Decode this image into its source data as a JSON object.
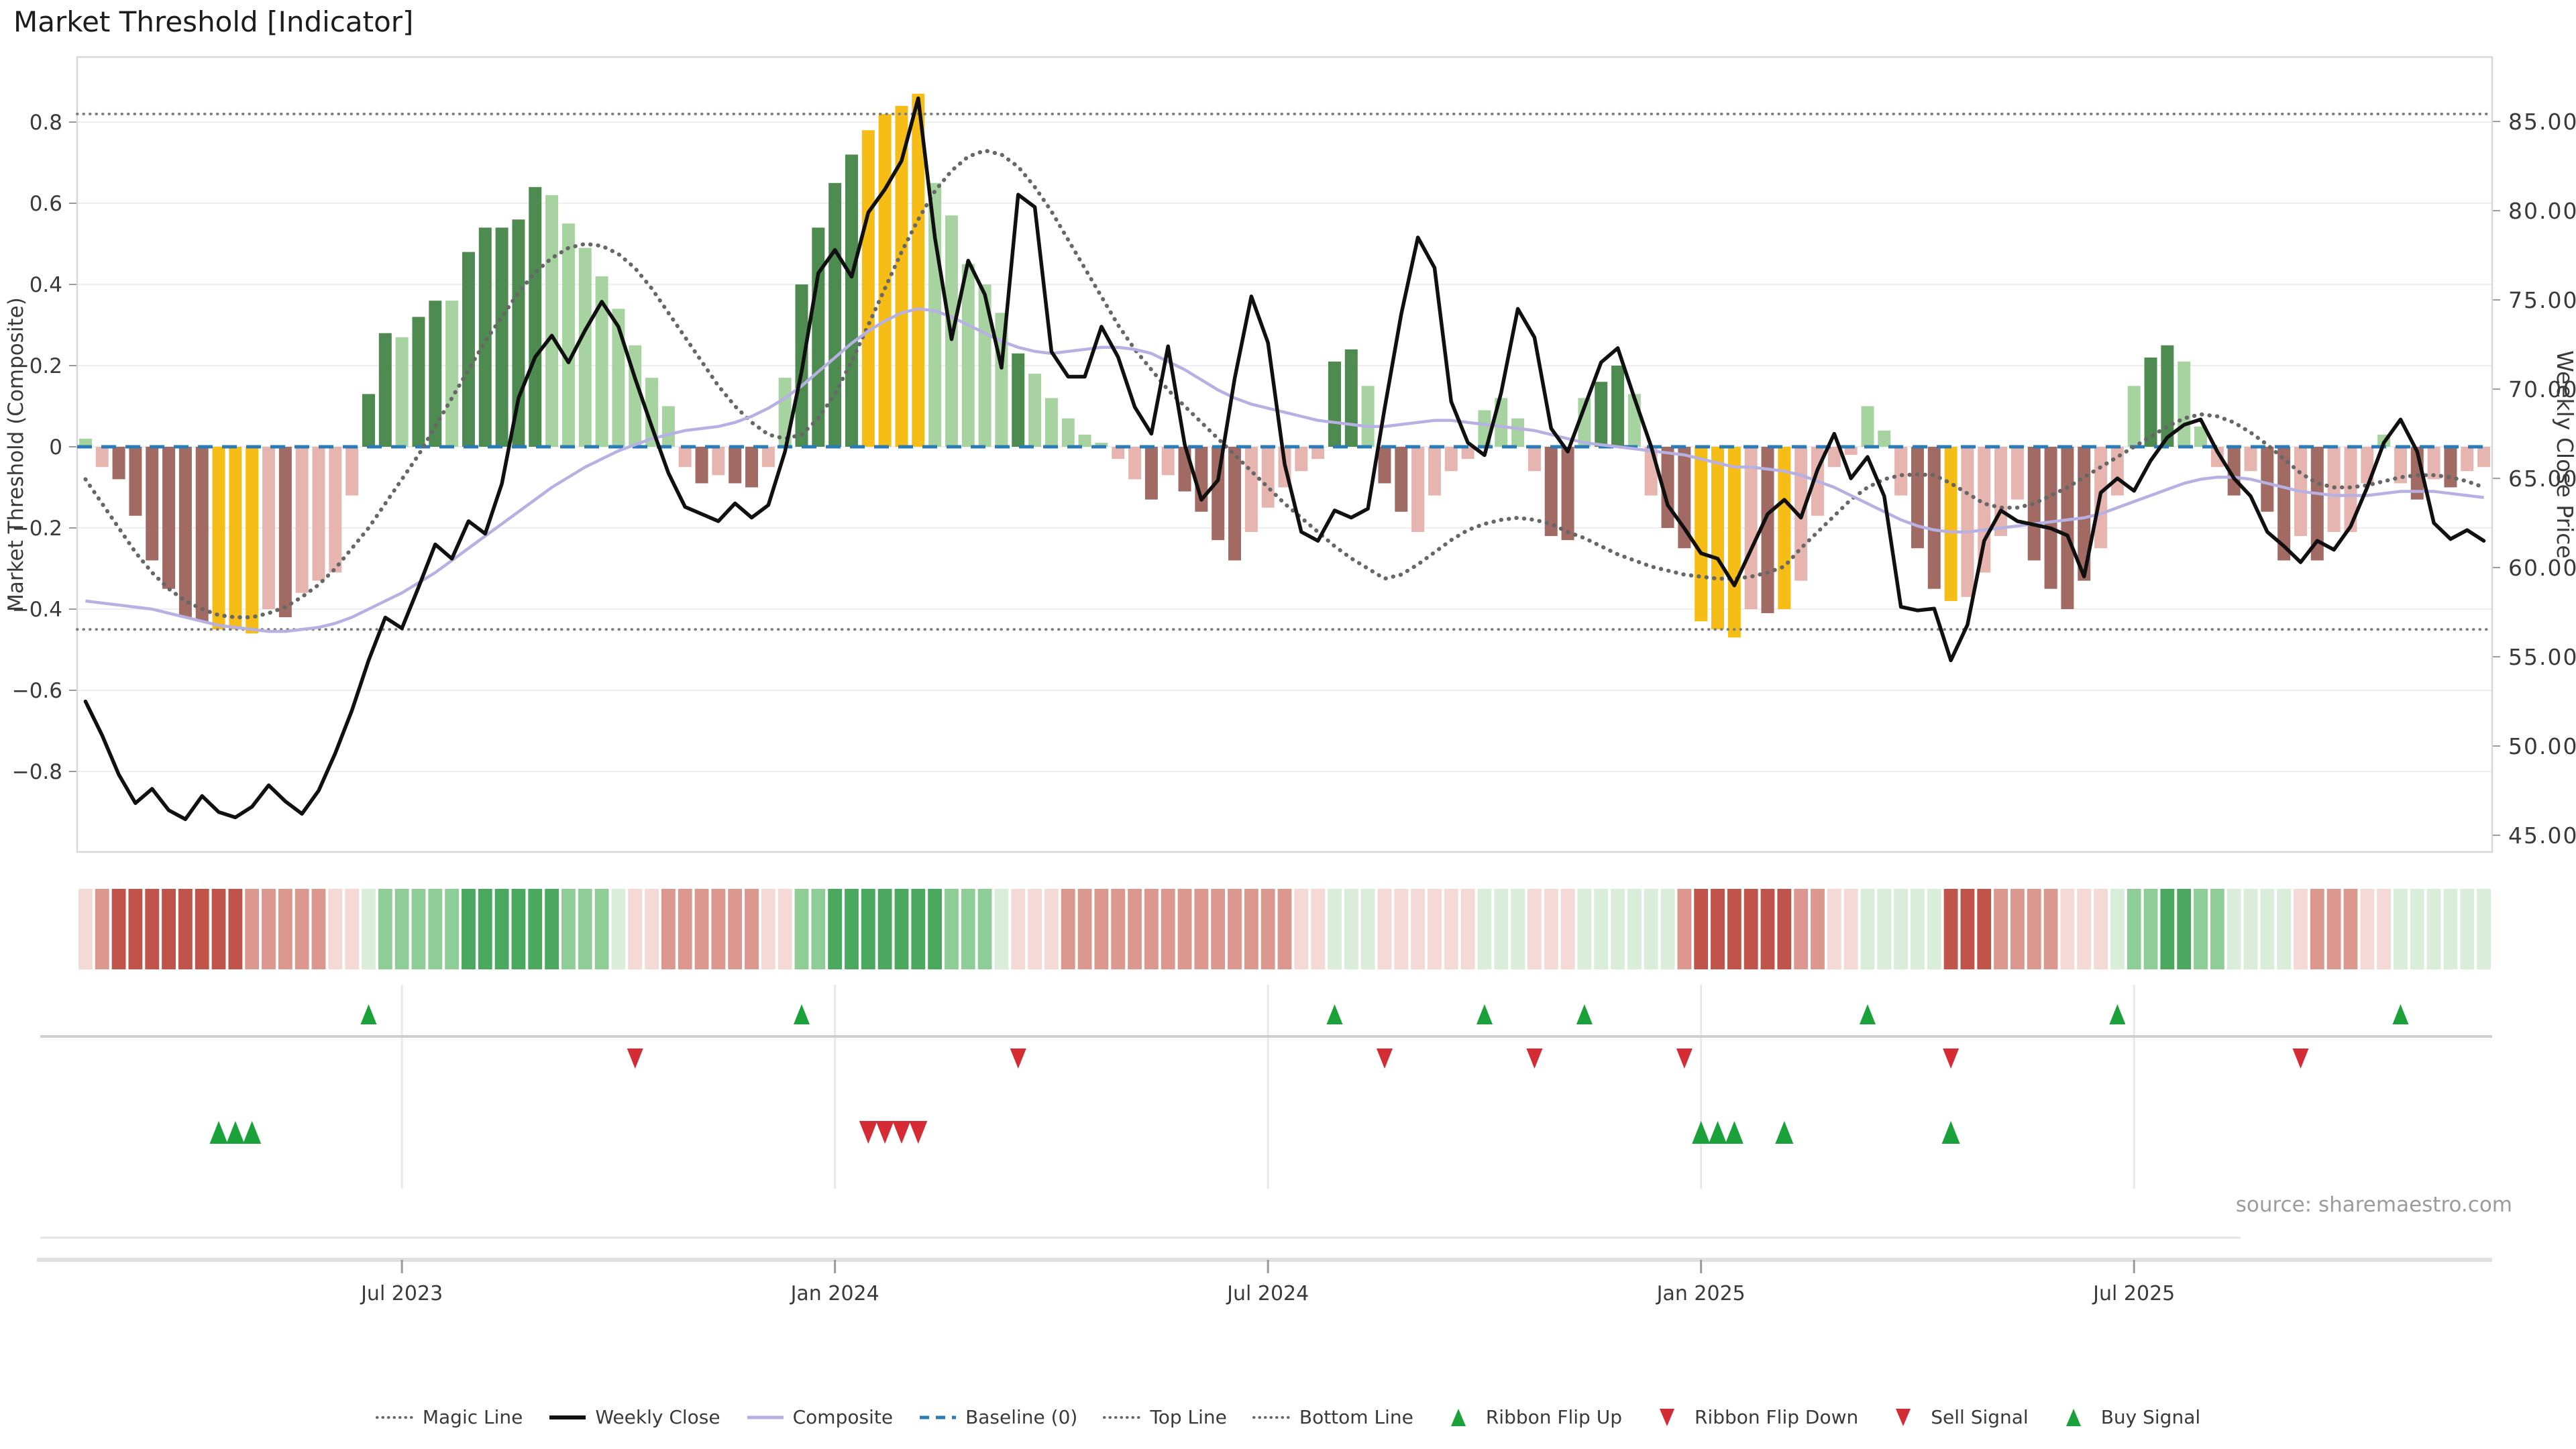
{
  "title": "Market Threshold [Indicator]",
  "source_note": "source: sharemaestro.com",
  "axes": {
    "left_title": "Market Threshold (Composite)",
    "right_title": "Weekly Close Price",
    "left_ticks": [
      {
        "v": 0.8,
        "label": "0.8"
      },
      {
        "v": 0.6,
        "label": "0.6"
      },
      {
        "v": 0.4,
        "label": "0.4"
      },
      {
        "v": 0.2,
        "label": "0.2"
      },
      {
        "v": 0.0,
        "label": "0"
      },
      {
        "v": -0.2,
        "label": "−0.2"
      },
      {
        "v": -0.4,
        "label": "−0.4"
      },
      {
        "v": -0.6,
        "label": "−0.6"
      },
      {
        "v": -0.8,
        "label": "−0.8"
      }
    ],
    "right_ticks": [
      {
        "v": 85,
        "label": "85.00"
      },
      {
        "v": 80,
        "label": "80.00"
      },
      {
        "v": 75,
        "label": "75.00"
      },
      {
        "v": 70,
        "label": "70.00"
      },
      {
        "v": 65,
        "label": "65.00"
      },
      {
        "v": 60,
        "label": "60.00"
      },
      {
        "v": 55,
        "label": "55.00"
      },
      {
        "v": 50,
        "label": "50.00"
      },
      {
        "v": 45,
        "label": "45.00"
      }
    ],
    "x_ticks": [
      {
        "week": 19.5,
        "label": "Jul 2023"
      },
      {
        "week": 45.5,
        "label": "Jan 2024"
      },
      {
        "week": 71.5,
        "label": "Jul 2024"
      },
      {
        "week": 97.5,
        "label": "Jan 2025"
      },
      {
        "week": 123.5,
        "label": "Jul 2025"
      }
    ]
  },
  "legend": [
    {
      "label": "Magic Line",
      "marker": "dotted-gray"
    },
    {
      "label": "Weekly Close",
      "marker": "solid-black"
    },
    {
      "label": "Composite",
      "marker": "solid-lavender"
    },
    {
      "label": "Baseline (0)",
      "marker": "dashed-blue"
    },
    {
      "label": "Top Line",
      "marker": "dotted-gray"
    },
    {
      "label": "Bottom Line",
      "marker": "dotted-gray"
    },
    {
      "label": "Ribbon Flip Up",
      "marker": "tri-up-green"
    },
    {
      "label": "Ribbon Flip Down",
      "marker": "tri-down-red"
    },
    {
      "label": "Sell Signal",
      "marker": "tri-down-red"
    },
    {
      "label": "Buy Signal",
      "marker": "tri-up-green"
    }
  ],
  "colors": {
    "bar": {
      "dg": "#4e8b50",
      "lg": "#a7d3a0",
      "y": "#f6bd16",
      "lp": "#e7b5b0",
      "dp": "#a16b64"
    },
    "ribbon": {
      "g1": "#d9edda",
      "g2": "#8fcd96",
      "g3": "#4aa95e",
      "r1": "#f4d9d6",
      "r2": "#dc988f",
      "r3": "#c0544b"
    },
    "close_line": "#101010",
    "composite_line": "#b7b0e2",
    "magic_line": "#676767",
    "baseline": "#2b7cb6",
    "ref_line": "#7f7f7f",
    "grid": "#ededf2",
    "spine": "#d7d7dc",
    "signal_up": "#1ba13a",
    "signal_down": "#d52b35",
    "tick_text": "#3a3a3a"
  },
  "chart_data": {
    "type": "bar",
    "title": "Market Threshold [Indicator]",
    "xlabel": "",
    "ylabel_left": "Market Threshold (Composite)",
    "ylabel_right": "Weekly Close Price",
    "x_unit": "weekly, Feb 2023 – Nov 2025",
    "left_range": [
      -0.97,
      0.97
    ],
    "right_range": [
      44.0,
      88.5
    ],
    "grid": true,
    "legend_position": "bottom",
    "reference_lines": {
      "baseline": 0,
      "top_line": 0.82,
      "bottom_line": -0.45
    },
    "n_weeks": 145,
    "series": [
      {
        "name": "Market Threshold",
        "type": "bar",
        "axis": "left",
        "values": [
          0.02,
          -0.05,
          -0.08,
          -0.17,
          -0.28,
          -0.35,
          -0.42,
          -0.43,
          -0.45,
          -0.45,
          -0.46,
          -0.4,
          -0.42,
          -0.36,
          -0.33,
          -0.31,
          -0.12,
          0.13,
          0.28,
          0.27,
          0.32,
          0.36,
          0.36,
          0.48,
          0.54,
          0.54,
          0.56,
          0.64,
          0.62,
          0.55,
          0.49,
          0.42,
          0.34,
          0.25,
          0.17,
          0.1,
          -0.05,
          -0.09,
          -0.07,
          -0.09,
          -0.1,
          -0.05,
          0.17,
          0.4,
          0.54,
          0.65,
          0.72,
          0.78,
          0.82,
          0.84,
          0.87,
          0.65,
          0.57,
          0.45,
          0.4,
          0.33,
          0.23,
          0.18,
          0.12,
          0.07,
          0.03,
          0.01,
          -0.03,
          -0.08,
          -0.13,
          -0.07,
          -0.11,
          -0.16,
          -0.23,
          -0.28,
          -0.21,
          -0.15,
          -0.1,
          -0.06,
          -0.03,
          0.21,
          0.24,
          0.15,
          -0.09,
          -0.16,
          -0.21,
          -0.12,
          -0.06,
          -0.03,
          0.09,
          0.12,
          0.07,
          -0.06,
          -0.22,
          -0.23,
          0.12,
          0.16,
          0.2,
          0.13,
          -0.12,
          -0.2,
          -0.25,
          -0.43,
          -0.45,
          -0.47,
          -0.4,
          -0.41,
          -0.4,
          -0.33,
          -0.17,
          -0.05,
          -0.02,
          0.1,
          0.04,
          -0.12,
          -0.25,
          -0.35,
          -0.38,
          -0.37,
          -0.31,
          -0.22,
          -0.13,
          -0.28,
          -0.35,
          -0.4,
          -0.33,
          -0.25,
          -0.12,
          0.15,
          0.22,
          0.25,
          0.21,
          0.05,
          -0.05,
          -0.12,
          -0.06,
          -0.16,
          -0.28,
          -0.22,
          -0.28,
          -0.21,
          -0.21,
          -0.09,
          0.03,
          -0.09,
          -0.13,
          -0.08,
          -0.1,
          -0.06,
          -0.05
        ],
        "bar_color_codes": [
          "lg",
          "lp",
          "dp",
          "dp",
          "dp",
          "dp",
          "dp",
          "dp",
          "y",
          "y",
          "y",
          "lp",
          "dp",
          "lp",
          "lp",
          "lp",
          "lp",
          "dg",
          "dg",
          "lg",
          "dg",
          "dg",
          "lg",
          "dg",
          "dg",
          "dg",
          "dg",
          "dg",
          "lg",
          "lg",
          "lg",
          "lg",
          "lg",
          "lg",
          "lg",
          "lg",
          "lp",
          "dp",
          "lp",
          "dp",
          "dp",
          "lp",
          "lg",
          "dg",
          "dg",
          "dg",
          "dg",
          "y",
          "y",
          "y",
          "y",
          "lg",
          "lg",
          "lg",
          "lg",
          "lg",
          "dg",
          "lg",
          "lg",
          "lg",
          "lg",
          "lg",
          "lp",
          "lp",
          "dp",
          "lp",
          "dp",
          "dp",
          "dp",
          "dp",
          "lp",
          "lp",
          "lp",
          "lp",
          "lp",
          "dg",
          "dg",
          "lg",
          "dp",
          "dp",
          "lp",
          "lp",
          "lp",
          "lp",
          "lg",
          "lg",
          "lg",
          "lp",
          "dp",
          "dp",
          "lg",
          "dg",
          "dg",
          "lg",
          "lp",
          "dp",
          "dp",
          "y",
          "y",
          "y",
          "lp",
          "dp",
          "y",
          "lp",
          "lp",
          "lp",
          "lp",
          "lg",
          "lg",
          "lp",
          "dp",
          "dp",
          "y",
          "lp",
          "lp",
          "lp",
          "lp",
          "dp",
          "dp",
          "dp",
          "dp",
          "lp",
          "lp",
          "lg",
          "dg",
          "dg",
          "lg",
          "lg",
          "lp",
          "dp",
          "lp",
          "dp",
          "dp",
          "lp",
          "dp",
          "lp",
          "lp",
          "lp",
          "lg",
          "lp",
          "dp",
          "lp",
          "dp",
          "lp",
          "lp"
        ]
      },
      {
        "name": "Weekly Close",
        "type": "line",
        "axis": "right",
        "values": [
          52.5,
          50.6,
          48.4,
          46.8,
          47.6,
          46.4,
          45.9,
          47.2,
          46.3,
          46.0,
          46.6,
          47.8,
          46.9,
          46.2,
          47.5,
          49.6,
          52.0,
          54.8,
          57.2,
          56.6,
          58.9,
          61.3,
          60.5,
          62.6,
          61.9,
          64.7,
          69.5,
          71.8,
          73.0,
          71.5,
          73.3,
          74.9,
          73.5,
          70.6,
          67.9,
          65.3,
          63.4,
          63.0,
          62.6,
          63.6,
          62.8,
          63.5,
          66.5,
          71.0,
          76.5,
          77.8,
          76.3,
          79.9,
          81.2,
          82.8,
          86.3,
          78.5,
          72.8,
          77.2,
          75.3,
          71.2,
          80.9,
          80.2,
          72.1,
          70.7,
          70.7,
          73.5,
          71.8,
          69.0,
          67.5,
          72.4,
          66.9,
          63.8,
          64.9,
          70.6,
          75.2,
          72.6,
          65.8,
          62.0,
          61.5,
          63.2,
          62.8,
          63.3,
          68.9,
          74.2,
          78.5,
          76.8,
          69.3,
          67.0,
          66.3,
          69.8,
          74.5,
          72.9,
          67.8,
          66.5,
          69.0,
          71.5,
          72.3,
          69.5,
          66.8,
          63.5,
          62.2,
          60.8,
          60.5,
          59.0,
          61.0,
          63.0,
          63.8,
          62.8,
          65.5,
          67.5,
          65.0,
          66.2,
          64.0,
          57.8,
          57.6,
          57.7,
          54.8,
          56.8,
          61.5,
          63.2,
          62.6,
          62.4,
          62.2,
          61.8,
          59.5,
          64.2,
          65.0,
          64.3,
          66.0,
          67.3,
          68.0,
          68.3,
          66.5,
          65.0,
          64.0,
          62.0,
          61.2,
          60.3,
          61.5,
          61.0,
          62.3,
          64.5,
          67.0,
          68.3,
          66.5,
          62.5,
          61.6,
          62.1,
          61.5
        ]
      },
      {
        "name": "Composite",
        "type": "line",
        "axis": "left",
        "values": [
          -0.38,
          -0.385,
          -0.39,
          -0.395,
          -0.4,
          -0.41,
          -0.42,
          -0.43,
          -0.44,
          -0.445,
          -0.45,
          -0.455,
          -0.455,
          -0.45,
          -0.445,
          -0.435,
          -0.42,
          -0.4,
          -0.38,
          -0.36,
          -0.335,
          -0.31,
          -0.28,
          -0.25,
          -0.22,
          -0.19,
          -0.16,
          -0.13,
          -0.1,
          -0.075,
          -0.05,
          -0.03,
          -0.01,
          0.005,
          0.02,
          0.03,
          0.04,
          0.045,
          0.05,
          0.06,
          0.075,
          0.095,
          0.12,
          0.15,
          0.185,
          0.22,
          0.255,
          0.285,
          0.31,
          0.33,
          0.34,
          0.335,
          0.32,
          0.3,
          0.28,
          0.26,
          0.245,
          0.235,
          0.23,
          0.235,
          0.24,
          0.245,
          0.245,
          0.24,
          0.23,
          0.21,
          0.19,
          0.165,
          0.14,
          0.12,
          0.105,
          0.095,
          0.085,
          0.075,
          0.065,
          0.06,
          0.055,
          0.05,
          0.05,
          0.055,
          0.06,
          0.065,
          0.065,
          0.06,
          0.055,
          0.05,
          0.045,
          0.04,
          0.03,
          0.02,
          0.01,
          0.005,
          0.0,
          -0.005,
          -0.01,
          -0.015,
          -0.02,
          -0.03,
          -0.04,
          -0.05,
          -0.05,
          -0.055,
          -0.06,
          -0.07,
          -0.085,
          -0.1,
          -0.12,
          -0.14,
          -0.16,
          -0.18,
          -0.195,
          -0.205,
          -0.21,
          -0.21,
          -0.205,
          -0.2,
          -0.195,
          -0.19,
          -0.185,
          -0.18,
          -0.175,
          -0.165,
          -0.15,
          -0.135,
          -0.12,
          -0.105,
          -0.09,
          -0.08,
          -0.075,
          -0.075,
          -0.08,
          -0.09,
          -0.1,
          -0.11,
          -0.115,
          -0.12,
          -0.12,
          -0.12,
          -0.115,
          -0.11,
          -0.11,
          -0.11,
          -0.115,
          -0.12,
          -0.125
        ]
      },
      {
        "name": "Magic Line",
        "type": "line",
        "axis": "left",
        "values": [
          -0.08,
          -0.14,
          -0.2,
          -0.26,
          -0.31,
          -0.35,
          -0.38,
          -0.4,
          -0.415,
          -0.42,
          -0.42,
          -0.41,
          -0.395,
          -0.37,
          -0.34,
          -0.3,
          -0.25,
          -0.2,
          -0.14,
          -0.08,
          -0.02,
          0.05,
          0.12,
          0.19,
          0.26,
          0.32,
          0.38,
          0.43,
          0.465,
          0.49,
          0.5,
          0.495,
          0.475,
          0.44,
          0.39,
          0.33,
          0.27,
          0.21,
          0.15,
          0.1,
          0.06,
          0.03,
          0.02,
          0.03,
          0.07,
          0.13,
          0.21,
          0.3,
          0.39,
          0.48,
          0.56,
          0.63,
          0.68,
          0.715,
          0.73,
          0.72,
          0.69,
          0.64,
          0.58,
          0.51,
          0.44,
          0.37,
          0.3,
          0.24,
          0.19,
          0.14,
          0.1,
          0.06,
          0.02,
          -0.02,
          -0.06,
          -0.1,
          -0.14,
          -0.175,
          -0.21,
          -0.245,
          -0.275,
          -0.3,
          -0.325,
          -0.315,
          -0.29,
          -0.26,
          -0.23,
          -0.205,
          -0.19,
          -0.18,
          -0.175,
          -0.18,
          -0.19,
          -0.21,
          -0.225,
          -0.245,
          -0.265,
          -0.28,
          -0.295,
          -0.305,
          -0.315,
          -0.32,
          -0.325,
          -0.325,
          -0.32,
          -0.31,
          -0.295,
          -0.25,
          -0.21,
          -0.17,
          -0.13,
          -0.1,
          -0.08,
          -0.07,
          -0.068,
          -0.07,
          -0.09,
          -0.115,
          -0.14,
          -0.15,
          -0.15,
          -0.14,
          -0.12,
          -0.1,
          -0.075,
          -0.05,
          -0.025,
          0.0,
          0.025,
          0.05,
          0.07,
          0.08,
          0.075,
          0.06,
          0.035,
          0.005,
          -0.03,
          -0.065,
          -0.09,
          -0.1,
          -0.1,
          -0.095,
          -0.085,
          -0.075,
          -0.07,
          -0.07,
          -0.075,
          -0.085,
          -0.1
        ]
      }
    ],
    "ribbon_levels": [
      -1,
      -2,
      -3,
      -3,
      -3,
      -3,
      -3,
      -3,
      -3,
      -3,
      -2,
      -2,
      -2,
      -2,
      -2,
      -1,
      -1,
      1,
      2,
      2,
      2,
      2,
      2,
      3,
      3,
      3,
      3,
      3,
      3,
      2,
      2,
      2,
      1,
      -1,
      -1,
      -2,
      -2,
      -2,
      -2,
      -2,
      -2,
      -1,
      -1,
      2,
      2,
      3,
      3,
      3,
      3,
      3,
      3,
      3,
      2,
      2,
      2,
      1,
      -1,
      -1,
      -1,
      -2,
      -2,
      -2,
      -2,
      -2,
      -2,
      -2,
      -2,
      -2,
      -2,
      -2,
      -2,
      -2,
      -2,
      -1,
      -1,
      1,
      1,
      1,
      -1,
      -1,
      -1,
      -1,
      -1,
      -1,
      1,
      1,
      1,
      -1,
      -1,
      -1,
      1,
      1,
      1,
      1,
      1,
      1,
      -2,
      -3,
      -3,
      -3,
      -3,
      -3,
      -3,
      -2,
      -2,
      -1,
      -1,
      1,
      1,
      1,
      1,
      1,
      -3,
      -3,
      -3,
      -2,
      -2,
      -2,
      -2,
      -1,
      -1,
      -1,
      1,
      2,
      2,
      3,
      3,
      2,
      2,
      1,
      1,
      1,
      1,
      -1,
      -2,
      -2,
      -2,
      -1,
      -1,
      1,
      1,
      1,
      1,
      1,
      1
    ],
    "signals": {
      "ribbon_flip_up_weeks": [
        17,
        43,
        75,
        84,
        90,
        107,
        122,
        139
      ],
      "ribbon_flip_down_weeks": [
        33,
        56,
        78,
        87,
        96,
        112,
        133
      ],
      "sell_signal_weeks": [
        47,
        48,
        49,
        50
      ],
      "buy_signal_weeks": [
        8,
        9,
        10,
        97,
        98,
        99,
        102,
        112
      ]
    }
  }
}
